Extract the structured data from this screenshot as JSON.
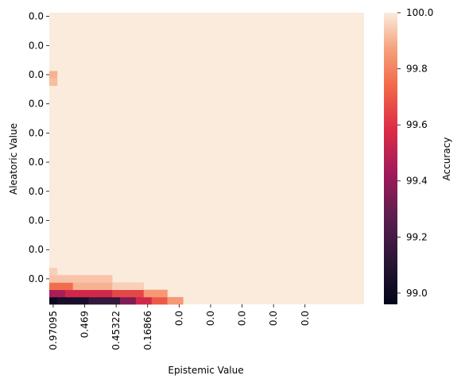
{
  "chart_data": {
    "type": "heatmap",
    "title": "",
    "xlabel": "Epistemic Value",
    "ylabel": "Aleatoric Value",
    "x_tick_labels": [
      "0.97095",
      "0.469",
      "0.45322",
      "0.16866",
      "0.0",
      "0.0",
      "0.0",
      "0.0",
      "0.0"
    ],
    "y_tick_labels": [
      "0.0",
      "0.0",
      "0.0",
      "0.0",
      "0.0",
      "0.0",
      "0.0",
      "0.0",
      "0.0",
      "0.0"
    ],
    "colorbar": {
      "label": "Accuracy",
      "ticks": [
        "100.0",
        "99.8",
        "99.6",
        "99.4",
        "99.2",
        "99.0"
      ],
      "tick_values": [
        100.0,
        99.8,
        99.6,
        99.4,
        99.2,
        99.0
      ],
      "range": [
        98.96,
        100.0
      ],
      "colormap": "rocket",
      "color_stops": [
        {
          "v": 0.0,
          "c": "#03051a"
        },
        {
          "v": 0.15,
          "c": "#2a1636"
        },
        {
          "v": 0.3,
          "c": "#5c1e4e"
        },
        {
          "v": 0.45,
          "c": "#a11a5b"
        },
        {
          "v": 0.6,
          "c": "#dd2c45"
        },
        {
          "v": 0.75,
          "c": "#f2694a"
        },
        {
          "v": 0.88,
          "c": "#f6a47e"
        },
        {
          "v": 1.0,
          "c": "#faebdd"
        }
      ]
    },
    "grid": {
      "columns": 40,
      "rows": 40,
      "default_value": 100.0,
      "cells": [
        {
          "row": 39,
          "col_from": 0,
          "col_to": 0,
          "value": 99.0
        },
        {
          "row": 39,
          "col_from": 1,
          "col_to": 4,
          "value": 99.05
        },
        {
          "row": 39,
          "col_from": 5,
          "col_to": 8,
          "value": 99.15
        },
        {
          "row": 39,
          "col_from": 9,
          "col_to": 10,
          "value": 99.35
        },
        {
          "row": 39,
          "col_from": 11,
          "col_to": 12,
          "value": 99.55
        },
        {
          "row": 39,
          "col_from": 13,
          "col_to": 14,
          "value": 99.7
        },
        {
          "row": 39,
          "col_from": 15,
          "col_to": 16,
          "value": 99.85
        },
        {
          "row": 38,
          "col_from": 0,
          "col_to": 1,
          "value": 99.45
        },
        {
          "row": 38,
          "col_from": 2,
          "col_to": 7,
          "value": 99.55
        },
        {
          "row": 38,
          "col_from": 8,
          "col_to": 11,
          "value": 99.65
        },
        {
          "row": 38,
          "col_from": 12,
          "col_to": 14,
          "value": 99.85
        },
        {
          "row": 37,
          "col_from": 0,
          "col_to": 2,
          "value": 99.75
        },
        {
          "row": 37,
          "col_from": 3,
          "col_to": 7,
          "value": 99.9
        },
        {
          "row": 36,
          "col_from": 0,
          "col_to": 7,
          "value": 99.93
        },
        {
          "row": 37,
          "col_from": 8,
          "col_to": 11,
          "value": 99.95
        },
        {
          "row": 35,
          "col_from": 0,
          "col_to": 0,
          "value": 99.95
        },
        {
          "row": 8,
          "col_from": 0,
          "col_to": 0,
          "value": 99.9
        },
        {
          "row": 9,
          "col_from": 0,
          "col_to": 0,
          "value": 99.92
        }
      ]
    }
  }
}
